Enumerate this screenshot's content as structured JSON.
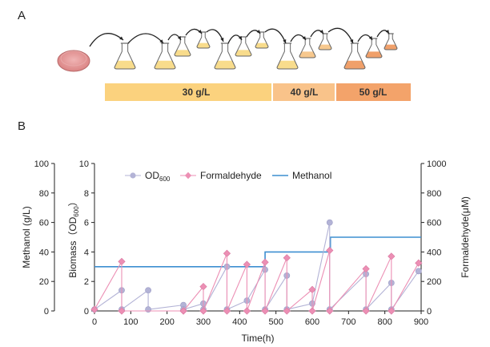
{
  "panels": {
    "a": "A",
    "b": "B"
  },
  "stages": [
    {
      "label": "30 g/L",
      "color": "#fbd27e"
    },
    {
      "label": "40 g/L",
      "color": "#f8c58a"
    },
    {
      "label": "50 g/L",
      "color": "#f4a36a"
    }
  ],
  "chart_data": {
    "type": "line",
    "xlabel": "Time(h)",
    "ylabel_left_outer": "Methanol (g/L)",
    "ylabel_left": "Biomass（OD",
    "ylabel_left_sub": "600",
    "ylabel_left_end": "）",
    "ylabel_right": "Formaldehyde(μM)",
    "xlim": [
      0,
      900
    ],
    "xticks": [
      "0",
      "100",
      "200",
      "300",
      "400",
      "500",
      "600",
      "700",
      "800",
      "900"
    ],
    "ylim_left": [
      0,
      10
    ],
    "yticks_left": [
      "0",
      "2",
      "4",
      "6",
      "8",
      "10"
    ],
    "ylim_left_outer": [
      0,
      100
    ],
    "yticks_left_outer": [
      "0",
      "20",
      "40",
      "60",
      "80",
      "100"
    ],
    "ylim_right": [
      0,
      1000
    ],
    "yticks_right": [
      "0",
      "200",
      "400",
      "600",
      "800",
      "1000"
    ],
    "legend": {
      "od_main": "OD",
      "od_sub": "600",
      "formaldehyde": "Formaldehyde",
      "methanol": "Methanol",
      "placement": "top"
    },
    "colors": {
      "od": "#b3b3d6",
      "formaldehyde": "#ec8fb4",
      "methanol": "#3d8fd1"
    },
    "series": [
      {
        "name": "OD600",
        "axis": "left",
        "segments": [
          [
            [
              0,
              0.1
            ],
            [
              75,
              1.4
            ]
          ],
          [
            [
              75,
              0.1
            ],
            [
              148,
              1.4
            ]
          ],
          [
            [
              148,
              0.1
            ],
            [
              245,
              0.4
            ]
          ],
          [
            [
              245,
              0.1
            ],
            [
              300,
              0.5
            ]
          ],
          [
            [
              300,
              0.1
            ],
            [
              365,
              3.0
            ]
          ],
          [
            [
              365,
              0.1
            ],
            [
              420,
              0.7
            ],
            [
              470,
              2.8
            ]
          ],
          [
            [
              470,
              0.1
            ],
            [
              530,
              2.4
            ]
          ],
          [
            [
              530,
              0.1
            ],
            [
              600,
              0.5
            ],
            [
              648,
              6.0
            ]
          ],
          [
            [
              648,
              0.1
            ],
            [
              748,
              2.5
            ]
          ],
          [
            [
              748,
              0.1
            ],
            [
              818,
              1.9
            ]
          ],
          [
            [
              818,
              0.1
            ],
            [
              893,
              2.7
            ]
          ]
        ]
      },
      {
        "name": "Formaldehyde",
        "axis": "right",
        "segments": [
          [
            [
              0,
              10
            ],
            [
              75,
              335
            ]
          ],
          [
            [
              75,
              0
            ],
            [
              245,
              0
            ]
          ],
          [
            [
              245,
              0
            ],
            [
              300,
              165
            ]
          ],
          [
            [
              300,
              0
            ],
            [
              365,
              390
            ]
          ],
          [
            [
              365,
              0
            ],
            [
              420,
              315
            ]
          ],
          [
            [
              420,
              0
            ],
            [
              470,
              330
            ]
          ],
          [
            [
              470,
              0
            ],
            [
              530,
              360
            ]
          ],
          [
            [
              530,
              0
            ],
            [
              600,
              145
            ]
          ],
          [
            [
              600,
              0
            ],
            [
              648,
              410
            ]
          ],
          [
            [
              648,
              0
            ],
            [
              748,
              285
            ]
          ],
          [
            [
              748,
              0
            ],
            [
              818,
              370
            ]
          ],
          [
            [
              818,
              0
            ],
            [
              893,
              325
            ]
          ]
        ]
      },
      {
        "name": "Methanol",
        "axis": "left_outer",
        "steps": [
          [
            0,
            30
          ],
          [
            470,
            40
          ],
          [
            650,
            50
          ],
          [
            900,
            50
          ]
        ]
      }
    ]
  }
}
